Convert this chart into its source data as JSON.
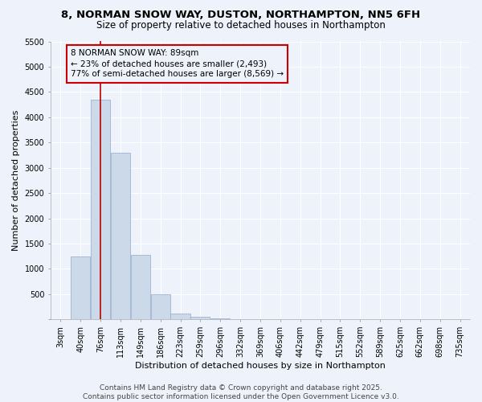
{
  "title_line1": "8, NORMAN SNOW WAY, DUSTON, NORTHAMPTON, NN5 6FH",
  "title_line2": "Size of property relative to detached houses in Northampton",
  "xlabel": "Distribution of detached houses by size in Northampton",
  "ylabel": "Number of detached properties",
  "categories": [
    "3sqm",
    "40sqm",
    "76sqm",
    "113sqm",
    "149sqm",
    "186sqm",
    "223sqm",
    "259sqm",
    "296sqm",
    "332sqm",
    "369sqm",
    "406sqm",
    "442sqm",
    "479sqm",
    "515sqm",
    "552sqm",
    "589sqm",
    "625sqm",
    "662sqm",
    "698sqm",
    "735sqm"
  ],
  "bar_values": [
    0,
    1250,
    4350,
    3300,
    1270,
    490,
    120,
    50,
    25,
    10,
    5,
    0,
    0,
    0,
    0,
    0,
    0,
    0,
    0,
    0,
    0
  ],
  "bar_color": "#ccd9e8",
  "bar_edgecolor": "#90aacc",
  "vline_index": 2,
  "vline_color": "#bb0000",
  "annotation_text": "8 NORMAN SNOW WAY: 89sqm\n← 23% of detached houses are smaller (2,493)\n77% of semi-detached houses are larger (8,569) →",
  "annotation_box_edgecolor": "#cc0000",
  "annotation_text_color": "#000000",
  "ylim": [
    0,
    5500
  ],
  "yticks": [
    0,
    500,
    1000,
    1500,
    2000,
    2500,
    3000,
    3500,
    4000,
    4500,
    5000,
    5500
  ],
  "background_color": "#eef2fa",
  "grid_color": "#ffffff",
  "footer_line1": "Contains HM Land Registry data © Crown copyright and database right 2025.",
  "footer_line2": "Contains public sector information licensed under the Open Government Licence v3.0.",
  "title_fontsize": 9.5,
  "subtitle_fontsize": 8.5,
  "axis_label_fontsize": 8,
  "tick_fontsize": 7,
  "annotation_fontsize": 7.5,
  "footer_fontsize": 6.5
}
